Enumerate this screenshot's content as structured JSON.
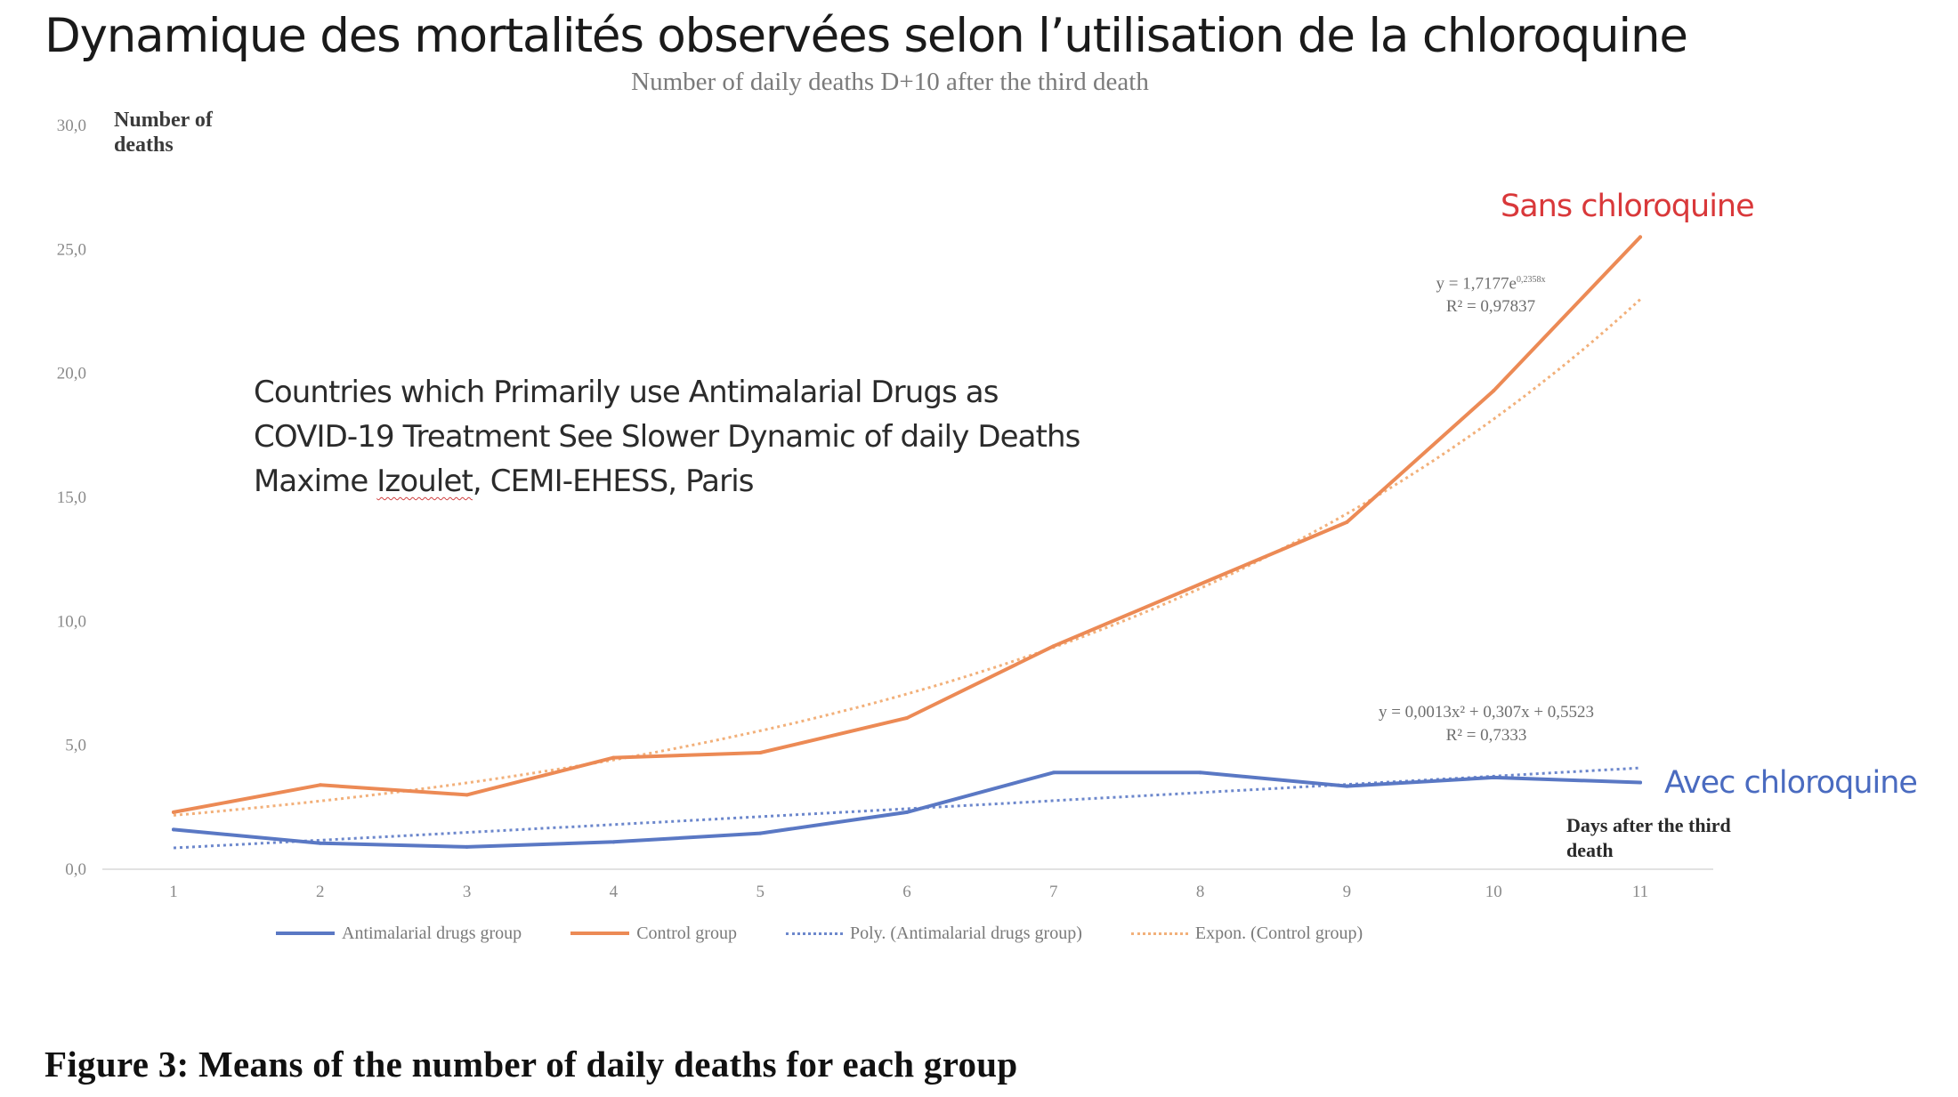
{
  "slide": {
    "title": "Dynamique des mortalités observées selon l’utilisation de la chloroquine",
    "annotation_lines": [
      "Countries which Primarily use Antimalarial Drugs as",
      "COVID-19 Treatment See Slower Dynamic of daily Deaths"
    ],
    "author_name": "Maxime ",
    "author_underlined": "Izoulet",
    "author_rest": ", CEMI-EHESS, Paris",
    "label_control": "Sans chloroquine",
    "label_antimalarial": "Avec chloroquine",
    "caption": "Figure 3: Means of the number of daily deaths for each group"
  },
  "chart_data": {
    "type": "line",
    "title": "Number of daily deaths D+10 after the third death",
    "xlabel": "Days after the third death",
    "ylabel": "Number of deaths",
    "x": [
      1,
      2,
      3,
      4,
      5,
      6,
      7,
      8,
      9,
      10,
      11
    ],
    "x_tick_labels": [
      "1",
      "2",
      "3",
      "4",
      "5",
      "6",
      "7",
      "8",
      "9",
      "10",
      "11"
    ],
    "ylim": [
      0,
      30
    ],
    "y_ticks": [
      0,
      5,
      10,
      15,
      20,
      25,
      30
    ],
    "y_tick_labels": [
      "0,0",
      "5,0",
      "10,0",
      "15,0",
      "20,0",
      "25,0",
      "30,0"
    ],
    "grid": false,
    "legend_position": "bottom",
    "series": [
      {
        "name": "Antimalarial drugs group",
        "style": "solid",
        "color": "#5a78c4",
        "values": [
          1.6,
          1.05,
          0.9,
          1.1,
          1.45,
          2.3,
          3.9,
          3.9,
          3.35,
          3.7,
          3.5
        ]
      },
      {
        "name": "Control group",
        "style": "solid",
        "color": "#ec8a55",
        "values": [
          2.3,
          3.4,
          3.0,
          4.5,
          4.7,
          6.1,
          9.0,
          11.5,
          14.0,
          19.3,
          25.5
        ]
      }
    ],
    "trendlines": [
      {
        "name": "Poly. (Antimalarial drugs group)",
        "style": "dotted",
        "color": "#6c87cc",
        "kind": "polynomial",
        "equation": "y = 0,0013x² + 0,307x + 0,5523",
        "r2_text": "R² = 0,7333",
        "coefficients": {
          "a": 0.0013,
          "b": 0.307,
          "c": 0.5523
        }
      },
      {
        "name": "Expon. (Control group)",
        "style": "dotted",
        "color": "#f2b07a",
        "kind": "exponential",
        "equation_prefix": "y = 1,7177e",
        "equation_exponent": "0,2358x",
        "r2_text": "R² = 0,97837",
        "coefficients": {
          "a": 1.7177,
          "b": 0.2358
        }
      }
    ]
  }
}
